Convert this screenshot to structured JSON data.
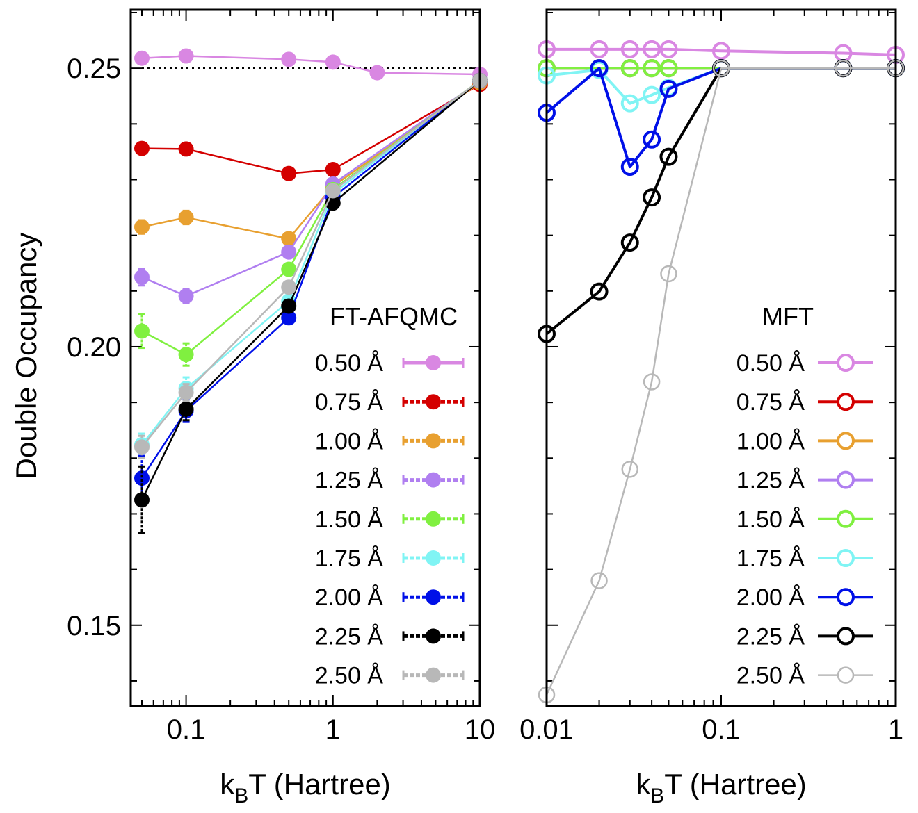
{
  "figure": {
    "ylabel": "Double Occupancy",
    "yticks": [
      {
        "value": 0.25,
        "label": "0.25"
      },
      {
        "value": 0.2,
        "label": "0.20"
      },
      {
        "value": 0.15,
        "label": "0.15"
      }
    ]
  },
  "chart_data": [
    {
      "type": "line",
      "panel": "left",
      "title": "",
      "xlabel": {
        "main": "k",
        "sub": "B",
        "rest": "T (Hartree)"
      },
      "ylabel": "Double Occupancy",
      "xscale": "log",
      "xlim": [
        0.042,
        10
      ],
      "ylim": [
        0.1355,
        0.2605
      ],
      "xticks": [
        {
          "value": 0.1,
          "label": "0.1"
        },
        {
          "value": 1,
          "label": "1"
        },
        {
          "value": 10,
          "label": "10"
        }
      ],
      "reference_line": {
        "y": 0.25,
        "style": "dotted",
        "x_from": 0.05,
        "x_to": 10
      },
      "legend_title": "FT-AFQMC",
      "legend_position": "lower-right",
      "marker": "filled-circle",
      "series": [
        {
          "name": "0.50 Å",
          "color": "#d987e2",
          "x": [
            0.05,
            0.1,
            0.5,
            1,
            2,
            10
          ],
          "y": [
            0.2518,
            0.2522,
            0.2516,
            0.2511,
            0.2492,
            0.2489
          ],
          "err": [
            0.0003,
            0.0003,
            0.0003,
            0.0003,
            0.0003,
            0.0003
          ]
        },
        {
          "name": "0.75 Å",
          "color": "#d40000",
          "x": [
            0.05,
            0.1,
            0.5,
            1,
            10
          ],
          "y": [
            0.2356,
            0.2355,
            0.2311,
            0.2318,
            0.2471
          ],
          "err": [
            0.0004,
            0.0004,
            0.0004,
            0.0004,
            0.0003
          ]
        },
        {
          "name": "1.00 Å",
          "color": "#e8a030",
          "x": [
            0.05,
            0.1,
            0.5,
            1,
            10
          ],
          "y": [
            0.2215,
            0.2232,
            0.2194,
            0.2288,
            0.2474
          ],
          "err": [
            0.0012,
            0.0012,
            0.0008,
            0.0006,
            0.0003
          ]
        },
        {
          "name": "1.25 Å",
          "color": "#b07ff0",
          "x": [
            0.05,
            0.1,
            0.5,
            1,
            10
          ],
          "y": [
            0.2125,
            0.2091,
            0.217,
            0.2292,
            0.2477
          ],
          "err": [
            0.0015,
            0.0012,
            0.0008,
            0.0006,
            0.0003
          ]
        },
        {
          "name": "1.50 Å",
          "color": "#80f040",
          "x": [
            0.05,
            0.1,
            0.5,
            1,
            10
          ],
          "y": [
            0.2028,
            0.1986,
            0.2139,
            0.2282,
            0.2478
          ],
          "err": [
            0.003,
            0.002,
            0.001,
            0.0006,
            0.0003
          ]
        },
        {
          "name": "1.75 Å",
          "color": "#80f4f4",
          "x": [
            0.05,
            0.1,
            0.5,
            1,
            10
          ],
          "y": [
            0.1824,
            0.1925,
            0.2082,
            0.2275,
            0.2478
          ],
          "err": [
            0.002,
            0.002,
            0.001,
            0.0006,
            0.0003
          ]
        },
        {
          "name": "2.00 Å",
          "color": "#0010e8",
          "x": [
            0.05,
            0.1,
            0.5,
            1,
            10
          ],
          "y": [
            0.1764,
            0.1885,
            0.2052,
            0.2268,
            0.2478
          ],
          "err": [
            0.004,
            0.002,
            0.001,
            0.0006,
            0.0003
          ]
        },
        {
          "name": "2.25 Å",
          "color": "#000000",
          "x": [
            0.05,
            0.1,
            0.5,
            1,
            10
          ],
          "y": [
            0.1725,
            0.1888,
            0.2073,
            0.2258,
            0.2478
          ],
          "err": [
            0.006,
            0.002,
            0.001,
            0.0006,
            0.0003
          ]
        },
        {
          "name": "2.50 Å",
          "color": "#b8b8b8",
          "x": [
            0.05,
            0.1,
            0.5,
            1,
            10
          ],
          "y": [
            0.182,
            0.1918,
            0.2107,
            0.228,
            0.2478
          ],
          "err": [
            0.002,
            0.0015,
            0.001,
            0.0006,
            0.0003
          ]
        }
      ]
    },
    {
      "type": "line",
      "panel": "right",
      "title": "",
      "xlabel": {
        "main": "k",
        "sub": "B",
        "rest": "T (Hartree)"
      },
      "ylabel": "",
      "xscale": "log",
      "xlim": [
        0.01,
        1
      ],
      "ylim": [
        0.1355,
        0.2605
      ],
      "xticks": [
        {
          "value": 0.01,
          "label": "0.01"
        },
        {
          "value": 0.1,
          "label": "0.1"
        },
        {
          "value": 1,
          "label": "1"
        }
      ],
      "legend_title": "MFT",
      "legend_position": "lower-right",
      "marker": "open-circle",
      "series": [
        {
          "name": "0.50 Å",
          "color": "#d987e2",
          "x": [
            0.01,
            0.02,
            0.03,
            0.04,
            0.05,
            0.1,
            0.5,
            1
          ],
          "y": [
            0.2534,
            0.2534,
            0.2534,
            0.2534,
            0.2534,
            0.2531,
            0.2527,
            0.2524
          ]
        },
        {
          "name": "0.75 Å",
          "color": "#d40000",
          "x": [
            0.01,
            0.02,
            0.03,
            0.04,
            0.05,
            0.1,
            0.5,
            1
          ],
          "y": [
            0.25,
            0.25,
            0.25,
            0.25,
            0.25,
            0.25,
            0.25,
            0.25
          ]
        },
        {
          "name": "1.00 Å",
          "color": "#e8a030",
          "x": [
            0.01,
            0.02,
            0.03,
            0.04,
            0.05,
            0.1,
            0.5,
            1
          ],
          "y": [
            0.25,
            0.25,
            0.25,
            0.25,
            0.25,
            0.25,
            0.25,
            0.25
          ]
        },
        {
          "name": "1.25 Å",
          "color": "#b07ff0",
          "x": [
            0.01,
            0.02,
            0.03,
            0.04,
            0.05,
            0.1,
            0.5,
            1
          ],
          "y": [
            0.25,
            0.25,
            0.25,
            0.25,
            0.25,
            0.25,
            0.25,
            0.25
          ]
        },
        {
          "name": "1.50 Å",
          "color": "#80f040",
          "x": [
            0.01,
            0.02,
            0.03,
            0.04,
            0.05,
            0.1,
            0.5,
            1
          ],
          "y": [
            0.25,
            0.25,
            0.25,
            0.25,
            0.25,
            0.25,
            0.25,
            0.25
          ]
        },
        {
          "name": "1.75 Å",
          "color": "#80f4f4",
          "x": [
            0.01,
            0.02,
            0.03,
            0.04,
            0.05,
            0.1,
            0.5,
            1
          ],
          "y": [
            0.2487,
            0.2497,
            0.2437,
            0.2452,
            0.2465,
            0.25,
            0.25,
            0.25
          ]
        },
        {
          "name": "2.00 Å",
          "color": "#0010e8",
          "x": [
            0.01,
            0.02,
            0.03,
            0.04,
            0.05,
            0.1,
            0.5,
            1
          ],
          "y": [
            0.242,
            0.25,
            0.2323,
            0.2372,
            0.2463,
            0.25,
            0.25,
            0.25
          ]
        },
        {
          "name": "2.25 Å",
          "color": "#000000",
          "x": [
            0.01,
            0.02,
            0.03,
            0.04,
            0.05,
            0.1,
            0.5,
            1
          ],
          "y": [
            0.2023,
            0.2099,
            0.2187,
            0.2268,
            0.2341,
            0.25,
            0.25,
            0.25
          ]
        },
        {
          "name": "2.50 Å",
          "color": "#b8b8b8",
          "x": [
            0.01,
            0.02,
            0.03,
            0.04,
            0.05,
            0.1,
            0.5,
            1
          ],
          "y": [
            0.1375,
            0.158,
            0.178,
            0.1937,
            0.2131,
            0.25,
            0.25,
            0.25
          ]
        }
      ]
    }
  ]
}
